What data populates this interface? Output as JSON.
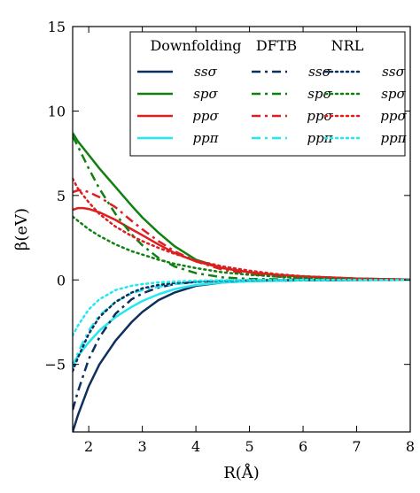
{
  "chart_data": {
    "type": "line",
    "xlabel": "R(Å)",
    "ylabel": "β(eV)",
    "xlim": [
      1.7,
      8
    ],
    "ylim": [
      -9,
      15
    ],
    "xticks": [
      2,
      3,
      4,
      5,
      6,
      7,
      8
    ],
    "yticks": [
      -5,
      0,
      5,
      10,
      15
    ],
    "grid": false,
    "legend_placement": "top-right",
    "legend_groups": [
      "Downfolding",
      "DFTB",
      "NRL"
    ],
    "legend_entries": [
      "ssσ",
      "spσ",
      "ppσ",
      "ppπ"
    ],
    "colors": {
      "ssσ": "#0d2f5c",
      "spσ": "#118011",
      "ppσ": "#dd1f1f",
      "ppπ": "#22e8f0"
    },
    "series": [
      {
        "name": "ssσ",
        "group": "Downfolding",
        "style": "solid",
        "color": "#0d2f5c",
        "x": [
          1.7,
          1.8,
          2.0,
          2.2,
          2.5,
          2.8,
          3.0,
          3.3,
          3.6,
          4.0,
          4.5,
          5.0,
          5.5,
          6.0,
          7.0,
          8.0
        ],
        "y": [
          -9.0,
          -8.0,
          -6.3,
          -5.0,
          -3.6,
          -2.5,
          -1.9,
          -1.2,
          -0.75,
          -0.35,
          -0.15,
          -0.07,
          -0.04,
          -0.02,
          -0.01,
          0.0
        ]
      },
      {
        "name": "spσ",
        "group": "Downfolding",
        "style": "solid",
        "color": "#118011",
        "x": [
          1.7,
          1.8,
          2.0,
          2.2,
          2.5,
          2.8,
          3.0,
          3.3,
          3.6,
          4.0,
          4.5,
          5.0,
          5.5,
          6.0,
          7.0,
          8.0
        ],
        "y": [
          8.7,
          8.2,
          7.4,
          6.6,
          5.5,
          4.4,
          3.7,
          2.8,
          2.0,
          1.2,
          0.7,
          0.45,
          0.3,
          0.2,
          0.08,
          0.02
        ]
      },
      {
        "name": "ppσ",
        "group": "Downfolding",
        "style": "solid",
        "color": "#dd1f1f",
        "x": [
          1.7,
          1.8,
          1.9,
          2.0,
          2.2,
          2.5,
          2.8,
          3.0,
          3.3,
          3.6,
          4.0,
          4.5,
          5.0,
          5.5,
          6.0,
          7.0,
          8.0
        ],
        "y": [
          4.15,
          4.25,
          4.25,
          4.2,
          4.0,
          3.55,
          3.0,
          2.65,
          2.1,
          1.6,
          1.1,
          0.7,
          0.45,
          0.3,
          0.2,
          0.08,
          0.02
        ]
      },
      {
        "name": "ppπ",
        "group": "Downfolding",
        "style": "solid",
        "color": "#22e8f0",
        "x": [
          1.7,
          1.8,
          2.0,
          2.2,
          2.5,
          2.8,
          3.0,
          3.3,
          3.6,
          4.0,
          4.5,
          5.0,
          5.5,
          6.0,
          7.0,
          8.0
        ],
        "y": [
          -5.0,
          -4.5,
          -3.7,
          -3.0,
          -2.2,
          -1.6,
          -1.25,
          -0.85,
          -0.55,
          -0.3,
          -0.15,
          -0.08,
          -0.05,
          -0.03,
          -0.01,
          0.0
        ]
      },
      {
        "name": "ssσ",
        "group": "DFTB",
        "style": "dashdot",
        "color": "#0d2f5c",
        "x": [
          1.7,
          1.8,
          2.0,
          2.2,
          2.5,
          2.8,
          3.0,
          3.3,
          3.6,
          4.0,
          4.5,
          5.0,
          6.0,
          7.0,
          8.0
        ],
        "y": [
          -7.7,
          -6.6,
          -4.7,
          -3.4,
          -2.0,
          -1.15,
          -0.8,
          -0.45,
          -0.25,
          -0.12,
          -0.05,
          -0.02,
          -0.01,
          0.0,
          0.0
        ]
      },
      {
        "name": "spσ",
        "group": "DFTB",
        "style": "dashdot",
        "color": "#118011",
        "x": [
          1.7,
          1.8,
          2.0,
          2.2,
          2.5,
          2.8,
          3.0,
          3.3,
          3.6,
          4.0,
          4.5,
          5.0,
          6.0,
          7.0,
          8.0
        ],
        "y": [
          8.5,
          7.9,
          6.6,
          5.4,
          3.9,
          2.7,
          2.05,
          1.3,
          0.8,
          0.4,
          0.15,
          0.06,
          0.02,
          0.0,
          0.0
        ]
      },
      {
        "name": "ppσ",
        "group": "DFTB",
        "style": "dashdot",
        "color": "#dd1f1f",
        "x": [
          1.7,
          1.8,
          1.9,
          2.0,
          2.2,
          2.5,
          2.8,
          3.0,
          3.3,
          3.6,
          4.0,
          4.5,
          5.0,
          5.5,
          6.0,
          7.0,
          8.0
        ],
        "y": [
          5.2,
          5.3,
          5.3,
          5.2,
          4.9,
          4.3,
          3.5,
          3.0,
          2.3,
          1.7,
          1.1,
          0.6,
          0.35,
          0.2,
          0.12,
          0.04,
          0.01
        ]
      },
      {
        "name": "ppπ",
        "group": "DFTB",
        "style": "dashdot",
        "color": "#22e8f0",
        "x": [
          1.7,
          1.8,
          2.0,
          2.2,
          2.5,
          2.8,
          3.0,
          3.3,
          3.6,
          4.0,
          4.5,
          5.0,
          6.0,
          7.0,
          8.0
        ],
        "y": [
          -5.2,
          -4.3,
          -3.0,
          -2.1,
          -1.3,
          -0.8,
          -0.6,
          -0.4,
          -0.25,
          -0.13,
          -0.06,
          -0.03,
          -0.01,
          0.0,
          0.0
        ]
      },
      {
        "name": "ssσ",
        "group": "NRL",
        "style": "dotted",
        "color": "#0d2f5c",
        "x": [
          1.7,
          1.8,
          2.0,
          2.2,
          2.5,
          2.8,
          3.0,
          3.3,
          3.6,
          4.0,
          4.5,
          5.0,
          6.0,
          7.0,
          8.0
        ],
        "y": [
          -5.4,
          -4.6,
          -3.2,
          -2.2,
          -1.3,
          -0.75,
          -0.5,
          -0.3,
          -0.18,
          -0.1,
          -0.05,
          -0.02,
          -0.01,
          0.0,
          0.0
        ]
      },
      {
        "name": "spσ",
        "group": "NRL",
        "style": "dotted",
        "color": "#118011",
        "x": [
          1.7,
          1.8,
          2.0,
          2.2,
          2.5,
          2.8,
          3.0,
          3.3,
          3.6,
          4.0,
          4.5,
          5.0,
          5.5,
          6.0,
          7.0,
          8.0
        ],
        "y": [
          3.75,
          3.5,
          3.0,
          2.6,
          2.1,
          1.7,
          1.5,
          1.2,
          0.95,
          0.7,
          0.45,
          0.3,
          0.2,
          0.12,
          0.05,
          0.02
        ]
      },
      {
        "name": "ppσ",
        "group": "NRL",
        "style": "dotted",
        "color": "#dd1f1f",
        "x": [
          1.7,
          1.75,
          1.8,
          2.0,
          2.2,
          2.5,
          2.8,
          3.0,
          3.3,
          3.6,
          4.0,
          4.5,
          5.0,
          5.5,
          6.0,
          7.0,
          8.0
        ],
        "y": [
          6.0,
          5.7,
          5.4,
          4.6,
          3.9,
          3.15,
          2.6,
          2.3,
          1.9,
          1.55,
          1.15,
          0.8,
          0.55,
          0.35,
          0.22,
          0.08,
          0.02
        ]
      },
      {
        "name": "ppπ",
        "group": "NRL",
        "style": "dotted",
        "color": "#22e8f0",
        "x": [
          1.7,
          1.8,
          2.0,
          2.2,
          2.5,
          2.8,
          3.0,
          3.3,
          3.6,
          4.0,
          4.5,
          5.0,
          6.0,
          7.0,
          8.0
        ],
        "y": [
          -3.3,
          -2.7,
          -1.75,
          -1.15,
          -0.6,
          -0.35,
          -0.25,
          -0.15,
          -0.1,
          -0.05,
          -0.02,
          -0.01,
          0.0,
          0.0,
          0.0
        ]
      }
    ]
  }
}
